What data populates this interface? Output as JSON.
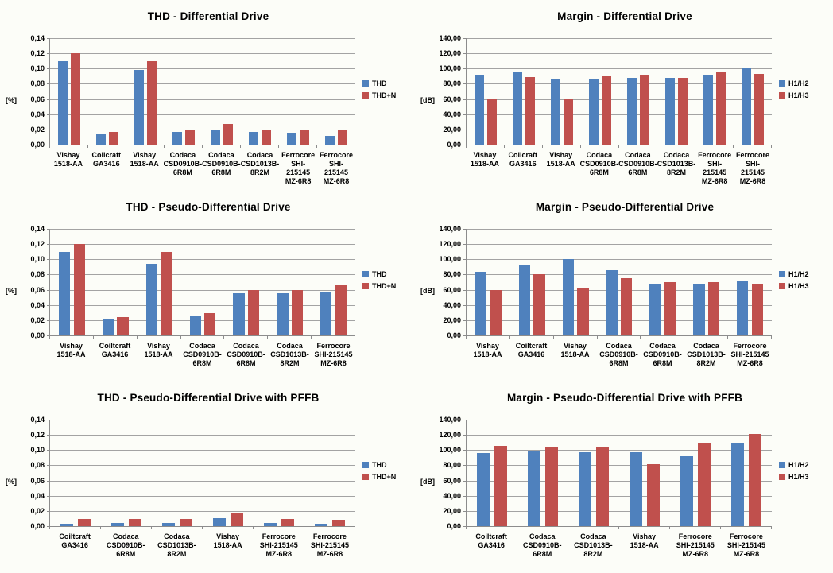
{
  "page": {
    "background": "#fcfdf8",
    "description": "Six clustered bar charts comparing inductor distortion and harmonic margin"
  },
  "colors": {
    "series_blue": "#4f81bd",
    "series_red": "#c0504d",
    "gridline": "#a3a3a3",
    "axis": "#8c8c8c",
    "text": "#000000"
  },
  "chart_data": [
    {
      "type": "bar",
      "title": "THD - Differential Drive",
      "xlabel": "",
      "ylabel": "[%]",
      "ylim": [
        0,
        0.14
      ],
      "grid": true,
      "legend_position": "right",
      "ytick_labels": [
        "0,14",
        "0,12",
        "0,10",
        "0,08",
        "0,06",
        "0,04",
        "0,02",
        "0,00"
      ],
      "categories": [
        [
          "Vishay",
          "1518-AA"
        ],
        [
          "Coilcraft",
          "GA3416"
        ],
        [
          "Vishay",
          "1518-AA"
        ],
        [
          "Codaca",
          "CSD0910B-",
          "6R8M"
        ],
        [
          "Codaca",
          "CSD0910B-",
          "6R8M"
        ],
        [
          "Codaca",
          "CSD1013B-",
          "8R2M"
        ],
        [
          "Ferrocore",
          "SHI-215145",
          "MZ-6R8"
        ],
        [
          "Ferrocore",
          "SHI-215145",
          "MZ-6R8"
        ]
      ],
      "series": [
        {
          "name": "THD",
          "color": "#4f81bd",
          "values": [
            0.11,
            0.015,
            0.098,
            0.017,
            0.02,
            0.017,
            0.016,
            0.012
          ]
        },
        {
          "name": "THD+N",
          "color": "#c0504d",
          "values": [
            0.12,
            0.017,
            0.11,
            0.019,
            0.027,
            0.02,
            0.019,
            0.019
          ]
        }
      ]
    },
    {
      "type": "bar",
      "title": "Margin - Differential Drive",
      "xlabel": "",
      "ylabel": "[dB]",
      "ylim": [
        0,
        140
      ],
      "grid": true,
      "legend_position": "right",
      "ytick_labels": [
        "140,00",
        "120,00",
        "100,00",
        "80,00",
        "60,00",
        "40,00",
        "20,00",
        "0,00"
      ],
      "categories": [
        [
          "Vishay",
          "1518-AA"
        ],
        [
          "Coilcraft",
          "GA3416"
        ],
        [
          "Vishay",
          "1518-AA"
        ],
        [
          "Codaca",
          "CSD0910B-",
          "6R8M"
        ],
        [
          "Codaca",
          "CSD0910B-",
          "6R8M"
        ],
        [
          "Codaca",
          "CSD1013B-",
          "8R2M"
        ],
        [
          "Ferrocore",
          "SHI-215145",
          "MZ-6R8"
        ],
        [
          "Ferrocore",
          "SHI-215145",
          "MZ-6R8"
        ]
      ],
      "series": [
        {
          "name": "H1/H2",
          "color": "#4f81bd",
          "values": [
            91,
            95,
            87,
            87,
            88,
            88,
            92,
            100
          ]
        },
        {
          "name": "H1/H3",
          "color": "#c0504d",
          "values": [
            60,
            89,
            61,
            90,
            92,
            88,
            96,
            93
          ]
        }
      ]
    },
    {
      "type": "bar",
      "title": "THD - Pseudo-Differential Drive",
      "xlabel": "",
      "ylabel": "[%]",
      "ylim": [
        0,
        0.14
      ],
      "grid": true,
      "legend_position": "right",
      "ytick_labels": [
        "0,14",
        "0,12",
        "0,10",
        "0,08",
        "0,06",
        "0,04",
        "0,02",
        "0,00"
      ],
      "categories": [
        [
          "Vishay",
          "1518-AA"
        ],
        [
          "Coiltcraft",
          "GA3416"
        ],
        [
          "Vishay",
          "1518-AA"
        ],
        [
          "Codaca",
          "CSD0910B-",
          "6R8M"
        ],
        [
          "Codaca",
          "CSD0910B-",
          "6R8M"
        ],
        [
          "Codaca",
          "CSD1013B-",
          "8R2M"
        ],
        [
          "Ferrocore",
          "SHI-215145",
          "MZ-6R8"
        ]
      ],
      "series": [
        {
          "name": "THD",
          "color": "#4f81bd",
          "values": [
            0.11,
            0.022,
            0.094,
            0.026,
            0.055,
            0.055,
            0.058
          ]
        },
        {
          "name": "THD+N",
          "color": "#c0504d",
          "values": [
            0.12,
            0.024,
            0.11,
            0.029,
            0.06,
            0.06,
            0.066
          ]
        }
      ]
    },
    {
      "type": "bar",
      "title": "Margin - Pseudo-Differential Drive",
      "xlabel": "",
      "ylabel": "[dB]",
      "ylim": [
        0,
        140
      ],
      "grid": true,
      "legend_position": "right",
      "ytick_labels": [
        "140,00",
        "120,00",
        "100,00",
        "80,00",
        "60,00",
        "40,00",
        "20,00",
        "0,00"
      ],
      "categories": [
        [
          "Vishay",
          "1518-AA"
        ],
        [
          "Coiltcraft",
          "GA3416"
        ],
        [
          "Vishay",
          "1518-AA"
        ],
        [
          "Codaca",
          "CSD0910B-",
          "6R8M"
        ],
        [
          "Codaca",
          "CSD0910B-",
          "6R8M"
        ],
        [
          "Codaca",
          "CSD1013B-",
          "8R2M"
        ],
        [
          "Ferrocore",
          "SHI-215145",
          "MZ-6R8"
        ]
      ],
      "series": [
        {
          "name": "H1/H2",
          "color": "#4f81bd",
          "values": [
            84,
            92,
            100,
            86,
            68,
            68,
            71
          ]
        },
        {
          "name": "H1/H3",
          "color": "#c0504d",
          "values": [
            60,
            80,
            62,
            75,
            70,
            70,
            68
          ]
        }
      ]
    },
    {
      "type": "bar",
      "title": "THD - Pseudo-Differential Drive with PFFB",
      "xlabel": "",
      "ylabel": "[%]",
      "ylim": [
        0,
        0.14
      ],
      "grid": true,
      "legend_position": "right",
      "ytick_labels": [
        "0,14",
        "0,12",
        "0,10",
        "0,08",
        "0,06",
        "0,04",
        "0,02",
        "0,00"
      ],
      "categories": [
        [
          "Coiltcraft",
          "GA3416"
        ],
        [
          "Codaca",
          "CSD0910B-",
          "6R8M"
        ],
        [
          "Codaca",
          "CSD1013B-",
          "8R2M"
        ],
        [
          "Vishay",
          "1518-AA"
        ],
        [
          "Ferrocore",
          "SHI-215145",
          "MZ-6R8"
        ],
        [
          "Ferrocore",
          "SHI-215145",
          "MZ-6R8"
        ]
      ],
      "series": [
        {
          "name": "THD",
          "color": "#4f81bd",
          "values": [
            0.003,
            0.004,
            0.004,
            0.01,
            0.004,
            0.003
          ]
        },
        {
          "name": "THD+N",
          "color": "#c0504d",
          "values": [
            0.009,
            0.009,
            0.009,
            0.017,
            0.009,
            0.008
          ]
        }
      ]
    },
    {
      "type": "bar",
      "title": "Margin - Pseudo-Differential Drive with PFFB",
      "xlabel": "",
      "ylabel": "[dB]",
      "ylim": [
        0,
        140
      ],
      "grid": true,
      "legend_position": "right",
      "ytick_labels": [
        "140,00",
        "120,00",
        "100,00",
        "80,00",
        "60,00",
        "40,00",
        "20,00",
        "0,00"
      ],
      "categories": [
        [
          "Coiltcraft",
          "GA3416"
        ],
        [
          "Codaca",
          "CSD0910B-",
          "6R8M"
        ],
        [
          "Codaca",
          "CSD1013B-",
          "8R2M"
        ],
        [
          "Vishay",
          "1518-AA"
        ],
        [
          "Ferrocore",
          "SHI-215145",
          "MZ-6R8"
        ],
        [
          "Ferrocore",
          "SHI-215145",
          "MZ-6R8"
        ]
      ],
      "series": [
        {
          "name": "H1/H2",
          "color": "#4f81bd",
          "values": [
            96,
            98,
            97,
            97,
            92,
            109
          ]
        },
        {
          "name": "H1/H3",
          "color": "#c0504d",
          "values": [
            106,
            103,
            105,
            82,
            109,
            121
          ]
        }
      ]
    }
  ]
}
